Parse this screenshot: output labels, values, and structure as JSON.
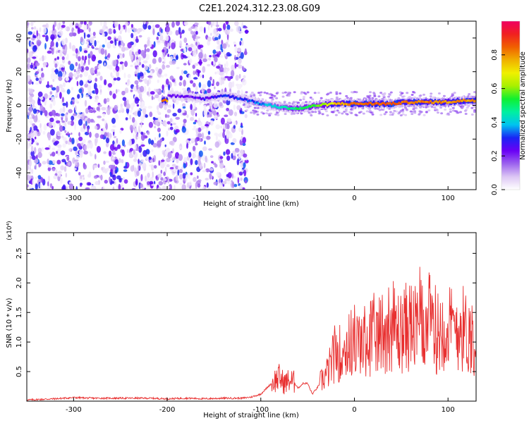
{
  "chart_data": [
    {
      "type": "heatmap",
      "title": "C2E1.2024.312.23.08.G09",
      "xlabel": "Height of straight line (km)",
      "ylabel": "Frequency (Hz)",
      "xlim": [
        -350,
        130
      ],
      "ylim": [
        -50,
        50
      ],
      "xticks": [
        -300,
        -200,
        -100,
        0,
        100
      ],
      "yticks": [
        -40,
        -20,
        0,
        20,
        40
      ],
      "colorbar": {
        "label": "Normalized spectral amplitude",
        "range": [
          0,
          1
        ],
        "ticks": [
          "0.0",
          "0.2",
          "0.4",
          "0.6",
          "0.8"
        ],
        "colors": [
          "#ffffff",
          "#dcc6f4",
          "#9c63ee",
          "#6a00f5",
          "#1a24f5",
          "#00c3f0",
          "#00f0a0",
          "#10f030",
          "#a8f000",
          "#f0f000",
          "#f0b000",
          "#f06000",
          "#f02020",
          "#f00060"
        ]
      },
      "ridge": {
        "x": [
          -200,
          -180,
          -160,
          -140,
          -120,
          -100,
          -80,
          -60,
          -40,
          -20,
          0,
          20,
          40,
          60,
          80,
          100,
          120,
          130
        ],
        "y": [
          6,
          5,
          4,
          6,
          4,
          1,
          -1,
          -2,
          0,
          1,
          1,
          1,
          1,
          2,
          2,
          2,
          3,
          3
        ],
        "amplitude": [
          0.2,
          0.22,
          0.25,
          0.28,
          0.3,
          0.35,
          0.45,
          0.5,
          0.55,
          0.75,
          0.82,
          0.85,
          0.85,
          0.82,
          0.82,
          0.8,
          0.8,
          0.8
        ]
      },
      "colorscale": "rainbow-white",
      "grid": false
    },
    {
      "type": "line",
      "xlabel": "Height of straight line (km)",
      "ylabel": "SNR (10 * v/v)",
      "y_multiplier": "(x10⁴)",
      "xlim": [
        -350,
        130
      ],
      "ylim": [
        0,
        2.85
      ],
      "xticks": [
        -300,
        -200,
        -100,
        0,
        100
      ],
      "yticks": [
        "0.5",
        "1.0",
        "1.5",
        "2.0",
        "2.5"
      ],
      "color": "#e83030",
      "series": [
        {
          "x": [
            -350,
            -320,
            -300,
            -280,
            -250,
            -220,
            -200,
            -180,
            -160,
            -140,
            -120,
            -110,
            -100,
            -95,
            -90,
            -85,
            -80,
            -75,
            -70,
            -65,
            -60,
            -55,
            -50,
            -45,
            -40,
            -35,
            -30,
            -25,
            -20,
            -15,
            -10,
            -5,
            0,
            5,
            10,
            15,
            20,
            25,
            30,
            35,
            40,
            45,
            50,
            55,
            60,
            65,
            70,
            75,
            80,
            85,
            90,
            95,
            100,
            105,
            110,
            115,
            120,
            125,
            130
          ],
          "y": [
            0.02,
            0.04,
            0.06,
            0.05,
            0.05,
            0.05,
            0.04,
            0.05,
            0.04,
            0.05,
            0.05,
            0.07,
            0.12,
            0.2,
            0.28,
            0.35,
            0.4,
            0.3,
            0.35,
            0.33,
            0.22,
            0.3,
            0.3,
            0.12,
            0.22,
            0.35,
            0.45,
            0.62,
            0.85,
            0.8,
            0.9,
            0.95,
            1.05,
            0.95,
            1.0,
            1.05,
            1.15,
            1.05,
            1.2,
            1.25,
            1.3,
            1.2,
            1.15,
            1.25,
            1.3,
            1.2,
            1.25,
            1.3,
            1.35,
            1.25,
            1.15,
            1.3,
            1.25,
            1.2,
            1.3,
            1.25,
            1.15,
            1.1,
            1.1
          ]
        }
      ],
      "grid": false
    }
  ]
}
